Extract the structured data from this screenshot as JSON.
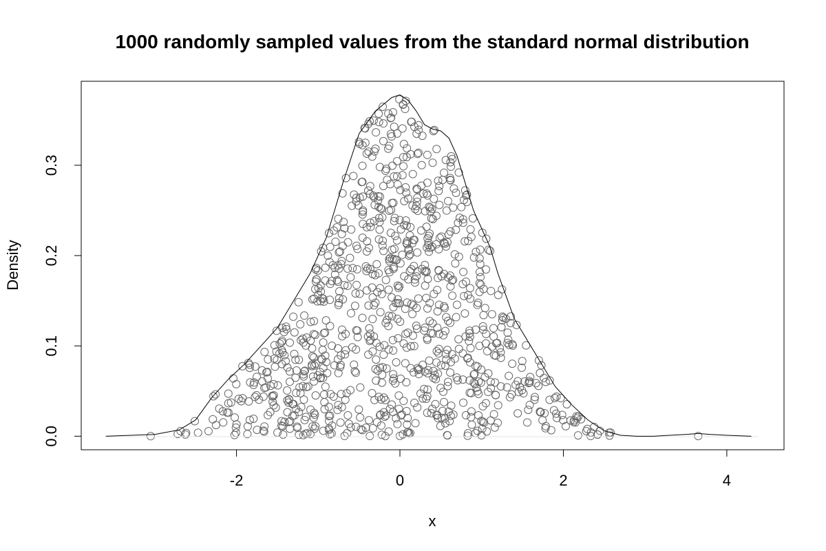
{
  "chart_data": {
    "type": "scatter",
    "title": "1000 randomly sampled values from the standard normal distribution",
    "xlabel": "x",
    "ylabel": "Density",
    "xlim": [
      -3.9,
      4.7
    ],
    "ylim": [
      -0.015,
      0.393
    ],
    "x_ticks": [
      -2,
      0,
      2,
      4
    ],
    "y_ticks": [
      0.0,
      0.1,
      0.2,
      0.3
    ],
    "x_tick_labels": [
      "-2",
      "0",
      "2",
      "4"
    ],
    "y_tick_labels": [
      "0.0",
      "0.1",
      "0.2",
      "0.3"
    ],
    "grid": false,
    "point_color": "#666666",
    "line_color": "#000000",
    "n_points": 1000,
    "point_seed": 7,
    "density_curve": {
      "name": "",
      "x": [
        -3.6,
        -3.0,
        -2.7,
        -2.5,
        -2.3,
        -2.1,
        -1.9,
        -1.7,
        -1.5,
        -1.3,
        -1.1,
        -0.9,
        -0.7,
        -0.5,
        -0.3,
        -0.1,
        0.0,
        0.1,
        0.2,
        0.3,
        0.4,
        0.5,
        0.6,
        0.7,
        0.8,
        0.9,
        1.0,
        1.1,
        1.2,
        1.3,
        1.4,
        1.5,
        1.7,
        1.9,
        2.1,
        2.3,
        2.5,
        2.7,
        2.9,
        3.1,
        3.3,
        3.5,
        3.65,
        3.8,
        4.0,
        4.3
      ],
      "y": [
        0.0,
        0.002,
        0.007,
        0.018,
        0.043,
        0.063,
        0.08,
        0.1,
        0.12,
        0.15,
        0.18,
        0.22,
        0.28,
        0.335,
        0.36,
        0.375,
        0.378,
        0.372,
        0.36,
        0.345,
        0.34,
        0.338,
        0.33,
        0.31,
        0.28,
        0.25,
        0.23,
        0.21,
        0.18,
        0.155,
        0.13,
        0.115,
        0.085,
        0.055,
        0.035,
        0.018,
        0.006,
        0.001,
        0.0,
        0.0,
        0.001,
        0.002,
        0.003,
        0.002,
        0.001,
        0.0
      ]
    }
  }
}
